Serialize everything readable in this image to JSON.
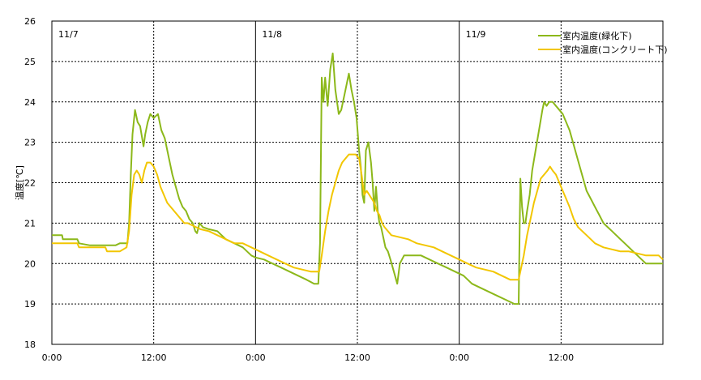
{
  "chart_data": {
    "type": "line",
    "ylabel": "温度[℃]",
    "ylim": [
      18,
      26
    ],
    "yticks": [
      18,
      19,
      20,
      21,
      22,
      23,
      24,
      25,
      26
    ],
    "xlim_hours": [
      0,
      72
    ],
    "xticks": [
      {
        "h": 0,
        "label": "0:00"
      },
      {
        "h": 12,
        "label": "12:00"
      },
      {
        "h": 24,
        "label": "0:00"
      },
      {
        "h": 36,
        "label": "12:00"
      },
      {
        "h": 48,
        "label": "0:00"
      },
      {
        "h": 60,
        "label": "12:00"
      }
    ],
    "day_labels": [
      {
        "h": 0,
        "label": "11/7"
      },
      {
        "h": 24,
        "label": "11/8"
      },
      {
        "h": 48,
        "label": "11/9"
      }
    ],
    "grid": true,
    "legend_position": "top-right",
    "series": [
      {
        "name": "室内温度(緑化下)",
        "color": "#8CB81A",
        "points": [
          [
            0,
            20.7
          ],
          [
            1.2,
            20.7
          ],
          [
            1.3,
            20.6
          ],
          [
            3.0,
            20.6
          ],
          [
            3.2,
            20.5
          ],
          [
            4.5,
            20.45
          ],
          [
            7.5,
            20.45
          ],
          [
            8.0,
            20.5
          ],
          [
            8.9,
            20.5
          ],
          [
            9.1,
            21.0
          ],
          [
            9.3,
            22.2
          ],
          [
            9.5,
            23.2
          ],
          [
            9.8,
            23.8
          ],
          [
            10.1,
            23.5
          ],
          [
            10.4,
            23.4
          ],
          [
            10.8,
            22.9
          ],
          [
            11.0,
            23.2
          ],
          [
            11.3,
            23.5
          ],
          [
            11.6,
            23.7
          ],
          [
            12.0,
            23.6
          ],
          [
            12.5,
            23.7
          ],
          [
            12.9,
            23.3
          ],
          [
            13.3,
            23.1
          ],
          [
            13.8,
            22.6
          ],
          [
            14.2,
            22.2
          ],
          [
            14.6,
            21.9
          ],
          [
            15.0,
            21.6
          ],
          [
            15.4,
            21.4
          ],
          [
            15.8,
            21.3
          ],
          [
            16.2,
            21.1
          ],
          [
            16.6,
            21.0
          ],
          [
            16.9,
            20.8
          ],
          [
            17.1,
            20.75
          ],
          [
            17.4,
            21.0
          ],
          [
            17.8,
            20.9
          ],
          [
            18.5,
            20.85
          ],
          [
            19.5,
            20.8
          ],
          [
            20.5,
            20.6
          ],
          [
            21.5,
            20.5
          ],
          [
            22.5,
            20.4
          ],
          [
            23.5,
            20.2
          ],
          [
            24.0,
            20.15
          ],
          [
            25.0,
            20.1
          ],
          [
            26.0,
            20.0
          ],
          [
            27.0,
            19.9
          ],
          [
            28.0,
            19.8
          ],
          [
            29.0,
            19.7
          ],
          [
            30.0,
            19.6
          ],
          [
            30.9,
            19.5
          ],
          [
            31.4,
            19.5
          ],
          [
            31.6,
            20.5
          ],
          [
            31.8,
            24.6
          ],
          [
            32.0,
            24.0
          ],
          [
            32.2,
            24.6
          ],
          [
            32.5,
            23.9
          ],
          [
            32.8,
            24.8
          ],
          [
            33.1,
            25.2
          ],
          [
            33.4,
            24.3
          ],
          [
            33.8,
            23.7
          ],
          [
            34.1,
            23.8
          ],
          [
            34.5,
            24.2
          ],
          [
            34.8,
            24.5
          ],
          [
            35.0,
            24.7
          ],
          [
            35.3,
            24.3
          ],
          [
            35.6,
            24.0
          ],
          [
            35.9,
            23.6
          ],
          [
            36.2,
            22.8
          ],
          [
            36.4,
            22.4
          ],
          [
            36.6,
            21.7
          ],
          [
            36.8,
            21.5
          ],
          [
            37.0,
            22.8
          ],
          [
            37.3,
            23.0
          ],
          [
            37.6,
            22.5
          ],
          [
            37.8,
            22.0
          ],
          [
            38.0,
            21.3
          ],
          [
            38.2,
            21.9
          ],
          [
            38.4,
            21.3
          ],
          [
            38.6,
            21.0
          ],
          [
            38.8,
            20.9
          ],
          [
            39.0,
            20.7
          ],
          [
            39.3,
            20.4
          ],
          [
            39.6,
            20.3
          ],
          [
            39.9,
            20.1
          ],
          [
            40.3,
            19.8
          ],
          [
            40.7,
            19.5
          ],
          [
            41.0,
            20.0
          ],
          [
            41.5,
            20.2
          ],
          [
            42.5,
            20.2
          ],
          [
            43.5,
            20.2
          ],
          [
            44.5,
            20.1
          ],
          [
            45.5,
            20.0
          ],
          [
            46.5,
            19.9
          ],
          [
            47.5,
            19.8
          ],
          [
            48.5,
            19.7
          ],
          [
            49.5,
            19.5
          ],
          [
            50.5,
            19.4
          ],
          [
            51.5,
            19.3
          ],
          [
            52.5,
            19.2
          ],
          [
            53.5,
            19.1
          ],
          [
            54.5,
            19.0
          ],
          [
            55.0,
            19.0
          ],
          [
            55.1,
            20.5
          ],
          [
            55.2,
            22.1
          ],
          [
            55.4,
            21.4
          ],
          [
            55.6,
            21.0
          ],
          [
            55.8,
            21.0
          ],
          [
            56.0,
            21.3
          ],
          [
            56.3,
            21.7
          ],
          [
            56.6,
            22.3
          ],
          [
            57.0,
            22.8
          ],
          [
            57.4,
            23.3
          ],
          [
            57.8,
            23.8
          ],
          [
            58.0,
            24.0
          ],
          [
            58.3,
            23.9
          ],
          [
            58.6,
            24.0
          ],
          [
            59.0,
            24.0
          ],
          [
            59.4,
            23.9
          ],
          [
            59.8,
            23.8
          ],
          [
            60.2,
            23.7
          ],
          [
            60.6,
            23.5
          ],
          [
            61.0,
            23.3
          ],
          [
            61.4,
            23.0
          ],
          [
            61.8,
            22.7
          ],
          [
            62.2,
            22.4
          ],
          [
            62.6,
            22.1
          ],
          [
            63.0,
            21.8
          ],
          [
            63.5,
            21.6
          ],
          [
            64.0,
            21.4
          ],
          [
            64.5,
            21.2
          ],
          [
            65.0,
            21.0
          ],
          [
            65.5,
            20.9
          ],
          [
            66.0,
            20.8
          ],
          [
            66.5,
            20.7
          ],
          [
            67.0,
            20.6
          ],
          [
            67.5,
            20.5
          ],
          [
            68.0,
            20.4
          ],
          [
            68.5,
            20.3
          ],
          [
            69.0,
            20.2
          ],
          [
            69.5,
            20.1
          ],
          [
            70.0,
            20.0
          ],
          [
            72.0,
            20.0
          ]
        ]
      },
      {
        "name": "室内温度(コンクリート下)",
        "color": "#F2C600",
        "points": [
          [
            0,
            20.5
          ],
          [
            3.0,
            20.5
          ],
          [
            3.2,
            20.4
          ],
          [
            6.3,
            20.4
          ],
          [
            6.5,
            20.3
          ],
          [
            8.0,
            20.3
          ],
          [
            8.8,
            20.4
          ],
          [
            9.1,
            20.8
          ],
          [
            9.4,
            21.7
          ],
          [
            9.7,
            22.2
          ],
          [
            10.0,
            22.3
          ],
          [
            10.3,
            22.2
          ],
          [
            10.6,
            22.0
          ],
          [
            10.9,
            22.3
          ],
          [
            11.2,
            22.5
          ],
          [
            11.6,
            22.5
          ],
          [
            12.0,
            22.4
          ],
          [
            12.4,
            22.2
          ],
          [
            12.8,
            21.9
          ],
          [
            13.2,
            21.7
          ],
          [
            13.6,
            21.5
          ],
          [
            14.0,
            21.4
          ],
          [
            14.4,
            21.3
          ],
          [
            14.8,
            21.2
          ],
          [
            15.2,
            21.1
          ],
          [
            15.6,
            21.0
          ],
          [
            16.0,
            21.0
          ],
          [
            16.5,
            20.95
          ],
          [
            17.0,
            20.9
          ],
          [
            17.5,
            20.85
          ],
          [
            18.5,
            20.8
          ],
          [
            19.5,
            20.7
          ],
          [
            20.5,
            20.6
          ],
          [
            21.5,
            20.5
          ],
          [
            22.5,
            20.5
          ],
          [
            23.5,
            20.4
          ],
          [
            24.5,
            20.3
          ],
          [
            25.5,
            20.2
          ],
          [
            26.5,
            20.1
          ],
          [
            27.5,
            20.0
          ],
          [
            28.5,
            19.9
          ],
          [
            29.5,
            19.85
          ],
          [
            30.5,
            19.8
          ],
          [
            31.2,
            19.8
          ],
          [
            31.5,
            19.8
          ],
          [
            31.8,
            20.2
          ],
          [
            32.2,
            20.8
          ],
          [
            32.6,
            21.3
          ],
          [
            33.0,
            21.7
          ],
          [
            33.4,
            22.0
          ],
          [
            33.8,
            22.3
          ],
          [
            34.2,
            22.5
          ],
          [
            34.6,
            22.6
          ],
          [
            35.0,
            22.7
          ],
          [
            35.4,
            22.7
          ],
          [
            35.8,
            22.7
          ],
          [
            36.2,
            22.6
          ],
          [
            36.5,
            22.2
          ],
          [
            36.8,
            21.7
          ],
          [
            37.1,
            21.8
          ],
          [
            37.4,
            21.7
          ],
          [
            37.7,
            21.6
          ],
          [
            38.0,
            21.5
          ],
          [
            38.3,
            21.3
          ],
          [
            38.6,
            21.2
          ],
          [
            38.9,
            21.0
          ],
          [
            39.2,
            20.9
          ],
          [
            39.6,
            20.8
          ],
          [
            40.0,
            20.7
          ],
          [
            41.0,
            20.65
          ],
          [
            42.0,
            20.6
          ],
          [
            43.0,
            20.5
          ],
          [
            44.0,
            20.45
          ],
          [
            45.0,
            20.4
          ],
          [
            46.0,
            20.3
          ],
          [
            47.0,
            20.2
          ],
          [
            48.0,
            20.1
          ],
          [
            49.0,
            20.0
          ],
          [
            50.0,
            19.9
          ],
          [
            51.0,
            19.85
          ],
          [
            52.0,
            19.8
          ],
          [
            53.0,
            19.7
          ],
          [
            54.0,
            19.6
          ],
          [
            54.9,
            19.6
          ],
          [
            55.0,
            19.6
          ],
          [
            55.2,
            19.8
          ],
          [
            55.6,
            20.2
          ],
          [
            56.0,
            20.7
          ],
          [
            56.4,
            21.1
          ],
          [
            56.8,
            21.5
          ],
          [
            57.2,
            21.8
          ],
          [
            57.6,
            22.1
          ],
          [
            58.0,
            22.2
          ],
          [
            58.4,
            22.3
          ],
          [
            58.7,
            22.4
          ],
          [
            59.0,
            22.3
          ],
          [
            59.4,
            22.2
          ],
          [
            59.8,
            22.0
          ],
          [
            60.2,
            21.8
          ],
          [
            60.6,
            21.6
          ],
          [
            61.0,
            21.4
          ],
          [
            61.5,
            21.1
          ],
          [
            62.0,
            20.9
          ],
          [
            62.5,
            20.8
          ],
          [
            63.0,
            20.7
          ],
          [
            63.5,
            20.6
          ],
          [
            64.0,
            20.5
          ],
          [
            65.0,
            20.4
          ],
          [
            66.0,
            20.35
          ],
          [
            67.0,
            20.3
          ],
          [
            68.0,
            20.3
          ],
          [
            69.0,
            20.25
          ],
          [
            70.0,
            20.2
          ],
          [
            71.5,
            20.2
          ],
          [
            72.0,
            20.1
          ]
        ]
      }
    ]
  }
}
